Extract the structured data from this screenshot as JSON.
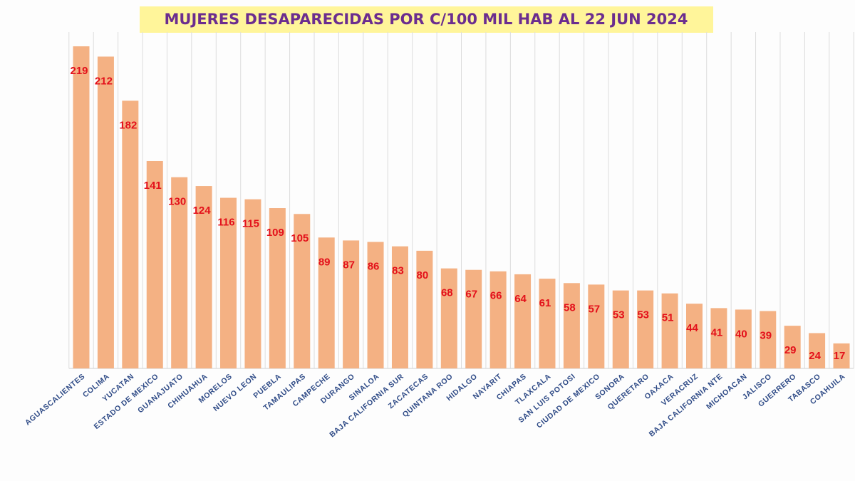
{
  "chart_data": {
    "type": "bar",
    "title": "MUJERES DESAPARECIDAS POR C/100 MIL HAB AL 22 JUN 2024",
    "categories": [
      "AGUASCALIENTES",
      "COLIMA",
      "YUCATAN",
      "ESTADO DE MEXICO",
      "GUANAJUATO",
      "CHIHUAHUA",
      "MORELOS",
      "NUEVO LEON",
      "PUEBLA",
      "TAMAULIPAS",
      "CAMPECHE",
      "DURANGO",
      "SINALOA",
      "BAJA CALIFORNIA SUR",
      "ZACATECAS",
      "QUINTANA ROO",
      "HIDALGO",
      "NAYARIT",
      "CHIAPAS",
      "TLAXCALA",
      "SAN LUIS POTOSI",
      "CIUDAD DE MEXICO",
      "SONORA",
      "QUERETARO",
      "OAXACA",
      "VERACRUZ",
      "BAJA CALIFORNIA NTE",
      "MICHOACAN",
      "JALISCO",
      "GUERRERO",
      "TABASCO",
      "COAHUILA"
    ],
    "values": [
      219,
      212,
      182,
      141,
      130,
      124,
      116,
      115,
      109,
      105,
      89,
      87,
      86,
      83,
      80,
      68,
      67,
      66,
      64,
      61,
      58,
      57,
      53,
      53,
      51,
      44,
      41,
      40,
      39,
      29,
      24,
      17
    ],
    "color": "#f4b183",
    "label_color": "#e3101a",
    "grid": true
  }
}
